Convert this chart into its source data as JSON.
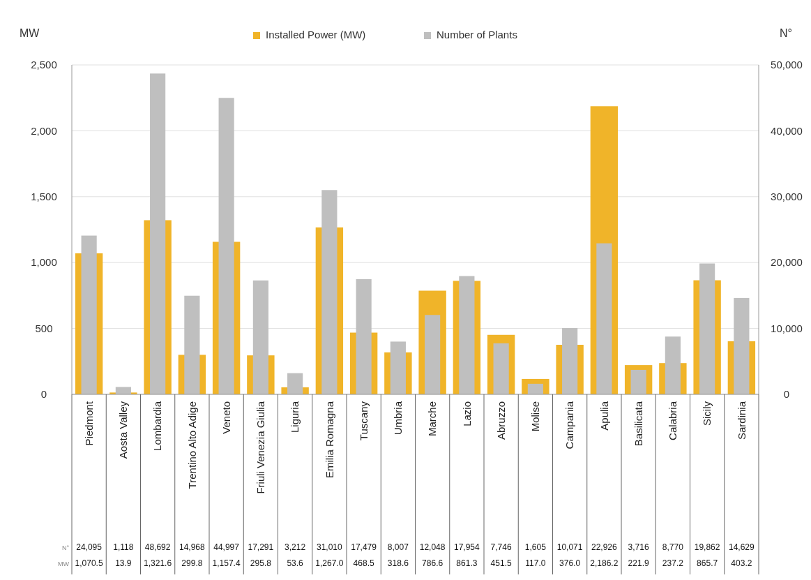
{
  "chart_data": {
    "type": "bar",
    "ylabel": "MW",
    "y2label": "N°",
    "categories": [
      "Piedmont",
      "Aosta Valley",
      "Lombardia",
      "Trentino Alto Adige",
      "Veneto",
      "Friuli Venezia Giulia",
      "Liguria",
      "Emilia Romagna",
      "Tuscany",
      "Umbria",
      "Marche",
      "Lazio",
      "Abruzzo",
      "Molise",
      "Campania",
      "Apulia",
      "Basilicata",
      "Calabria",
      "Sicily",
      "Sardinia"
    ],
    "series": [
      {
        "name": "Installed Power (MW)",
        "color": "#f0b429",
        "values": [
          1070.5,
          13.9,
          1321.6,
          299.8,
          1157.4,
          295.8,
          53.6,
          1267.0,
          468.5,
          318.6,
          786.6,
          861.3,
          451.5,
          117.0,
          376.0,
          2186.2,
          221.9,
          237.2,
          865.7,
          403.2
        ],
        "value_labels": [
          "1,070.5",
          "13.9",
          "1,321.6",
          "299.8",
          "1,157.4",
          "295.8",
          "53.6",
          "1,267.0",
          "468.5",
          "318.6",
          "786.6",
          "861.3",
          "451.5",
          "117.0",
          "376.0",
          "2,186.2",
          "221.9",
          "237.2",
          "865.7",
          "403.2"
        ]
      },
      {
        "name": "Number of Plants",
        "color": "#bfbfbf",
        "axis": "y2",
        "values": [
          24095,
          1118,
          48692,
          14968,
          44997,
          17291,
          3212,
          31010,
          17479,
          8007,
          12048,
          17954,
          7746,
          1605,
          10071,
          22926,
          3716,
          8770,
          19862,
          14629
        ],
        "value_labels": [
          "24,095",
          "1,118",
          "48,692",
          "14,968",
          "44,997",
          "17,291",
          "3,212",
          "31,010",
          "17,479",
          "8,007",
          "12,048",
          "17,954",
          "7,746",
          "1,605",
          "10,071",
          "22,926",
          "3,716",
          "8,770",
          "19,862",
          "14,629"
        ]
      }
    ],
    "ylim": [
      0,
      2500
    ],
    "yticks": [
      {
        "value": 0,
        "label": "0"
      },
      {
        "value": 500,
        "label": "500"
      },
      {
        "value": 1000,
        "label": "1,000"
      },
      {
        "value": 1500,
        "label": "1,500"
      },
      {
        "value": 2000,
        "label": "2,000"
      },
      {
        "value": 2500,
        "label": "2,500"
      }
    ],
    "y2lim": [
      0,
      50000
    ],
    "y2ticks": [
      {
        "value": 0,
        "label": "0"
      },
      {
        "value": 10000,
        "label": "10,000"
      },
      {
        "value": 20000,
        "label": "20,000"
      },
      {
        "value": 30000,
        "label": "30,000"
      },
      {
        "value": 40000,
        "label": "40,000"
      },
      {
        "value": 50000,
        "label": "50,000"
      }
    ],
    "grid": "y",
    "legend": "top"
  }
}
